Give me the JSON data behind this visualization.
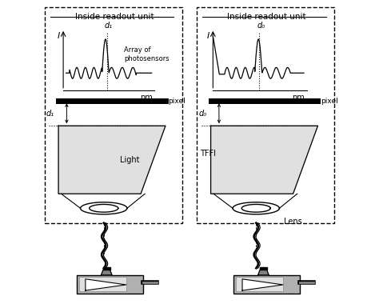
{
  "bg_color": "#ffffff",
  "left_title": "Inside readout unit",
  "right_title": "Inside readout unit",
  "left_d_label": "d₁",
  "right_d_label": "d₀",
  "label_I": "I",
  "label_nm": "nm",
  "label_pixel": "pixel",
  "label_light": "Light",
  "label_tffi": "TFFI",
  "label_lens": "Lens",
  "label_array": "Array of\nphotosensors"
}
